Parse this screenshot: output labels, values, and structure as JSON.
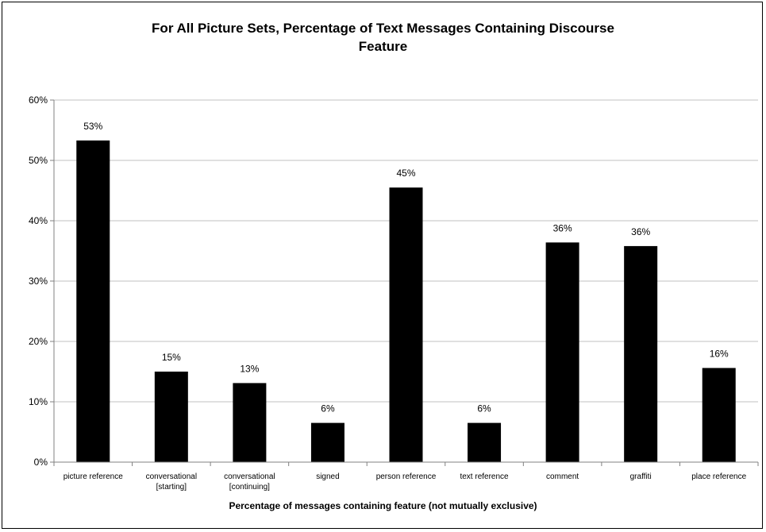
{
  "chart_data": {
    "type": "bar",
    "title": "For All Picture Sets, Percentage of Text Messages Containing Discourse Feature",
    "title_lines": [
      "For All Picture Sets, Percentage of Text Messages Containing Discourse",
      "Feature"
    ],
    "xlabel": "Percentage of messages containing feature (not mutually exclusive)",
    "ylabel": "",
    "categories": [
      "picture reference",
      "conversational [starting]",
      "conversational [continuing]",
      "signed",
      "person reference",
      "text reference",
      "comment",
      "graffiti",
      "place reference"
    ],
    "category_lines": [
      [
        "picture reference"
      ],
      [
        "conversational",
        "[starting]"
      ],
      [
        "conversational",
        "[continuing]"
      ],
      [
        "signed"
      ],
      [
        "person reference"
      ],
      [
        "text reference"
      ],
      [
        "comment"
      ],
      [
        "graffiti"
      ],
      [
        "place reference"
      ]
    ],
    "values": [
      53.3,
      15.0,
      13.1,
      6.5,
      45.5,
      6.5,
      36.4,
      35.8,
      15.6
    ],
    "data_labels": [
      "53%",
      "15%",
      "13%",
      "6%",
      "45%",
      "6%",
      "36%",
      "36%",
      "16%"
    ],
    "ylim": [
      0,
      60
    ],
    "yticks": [
      0,
      10,
      20,
      30,
      40,
      50,
      60
    ],
    "ytick_labels": [
      "0%",
      "10%",
      "20%",
      "30%",
      "40%",
      "50%",
      "60%"
    ],
    "grid": true,
    "legend": "none",
    "bar_color": "#000000",
    "grid_color": "#c0c0c0",
    "axis_color": "#808080"
  }
}
